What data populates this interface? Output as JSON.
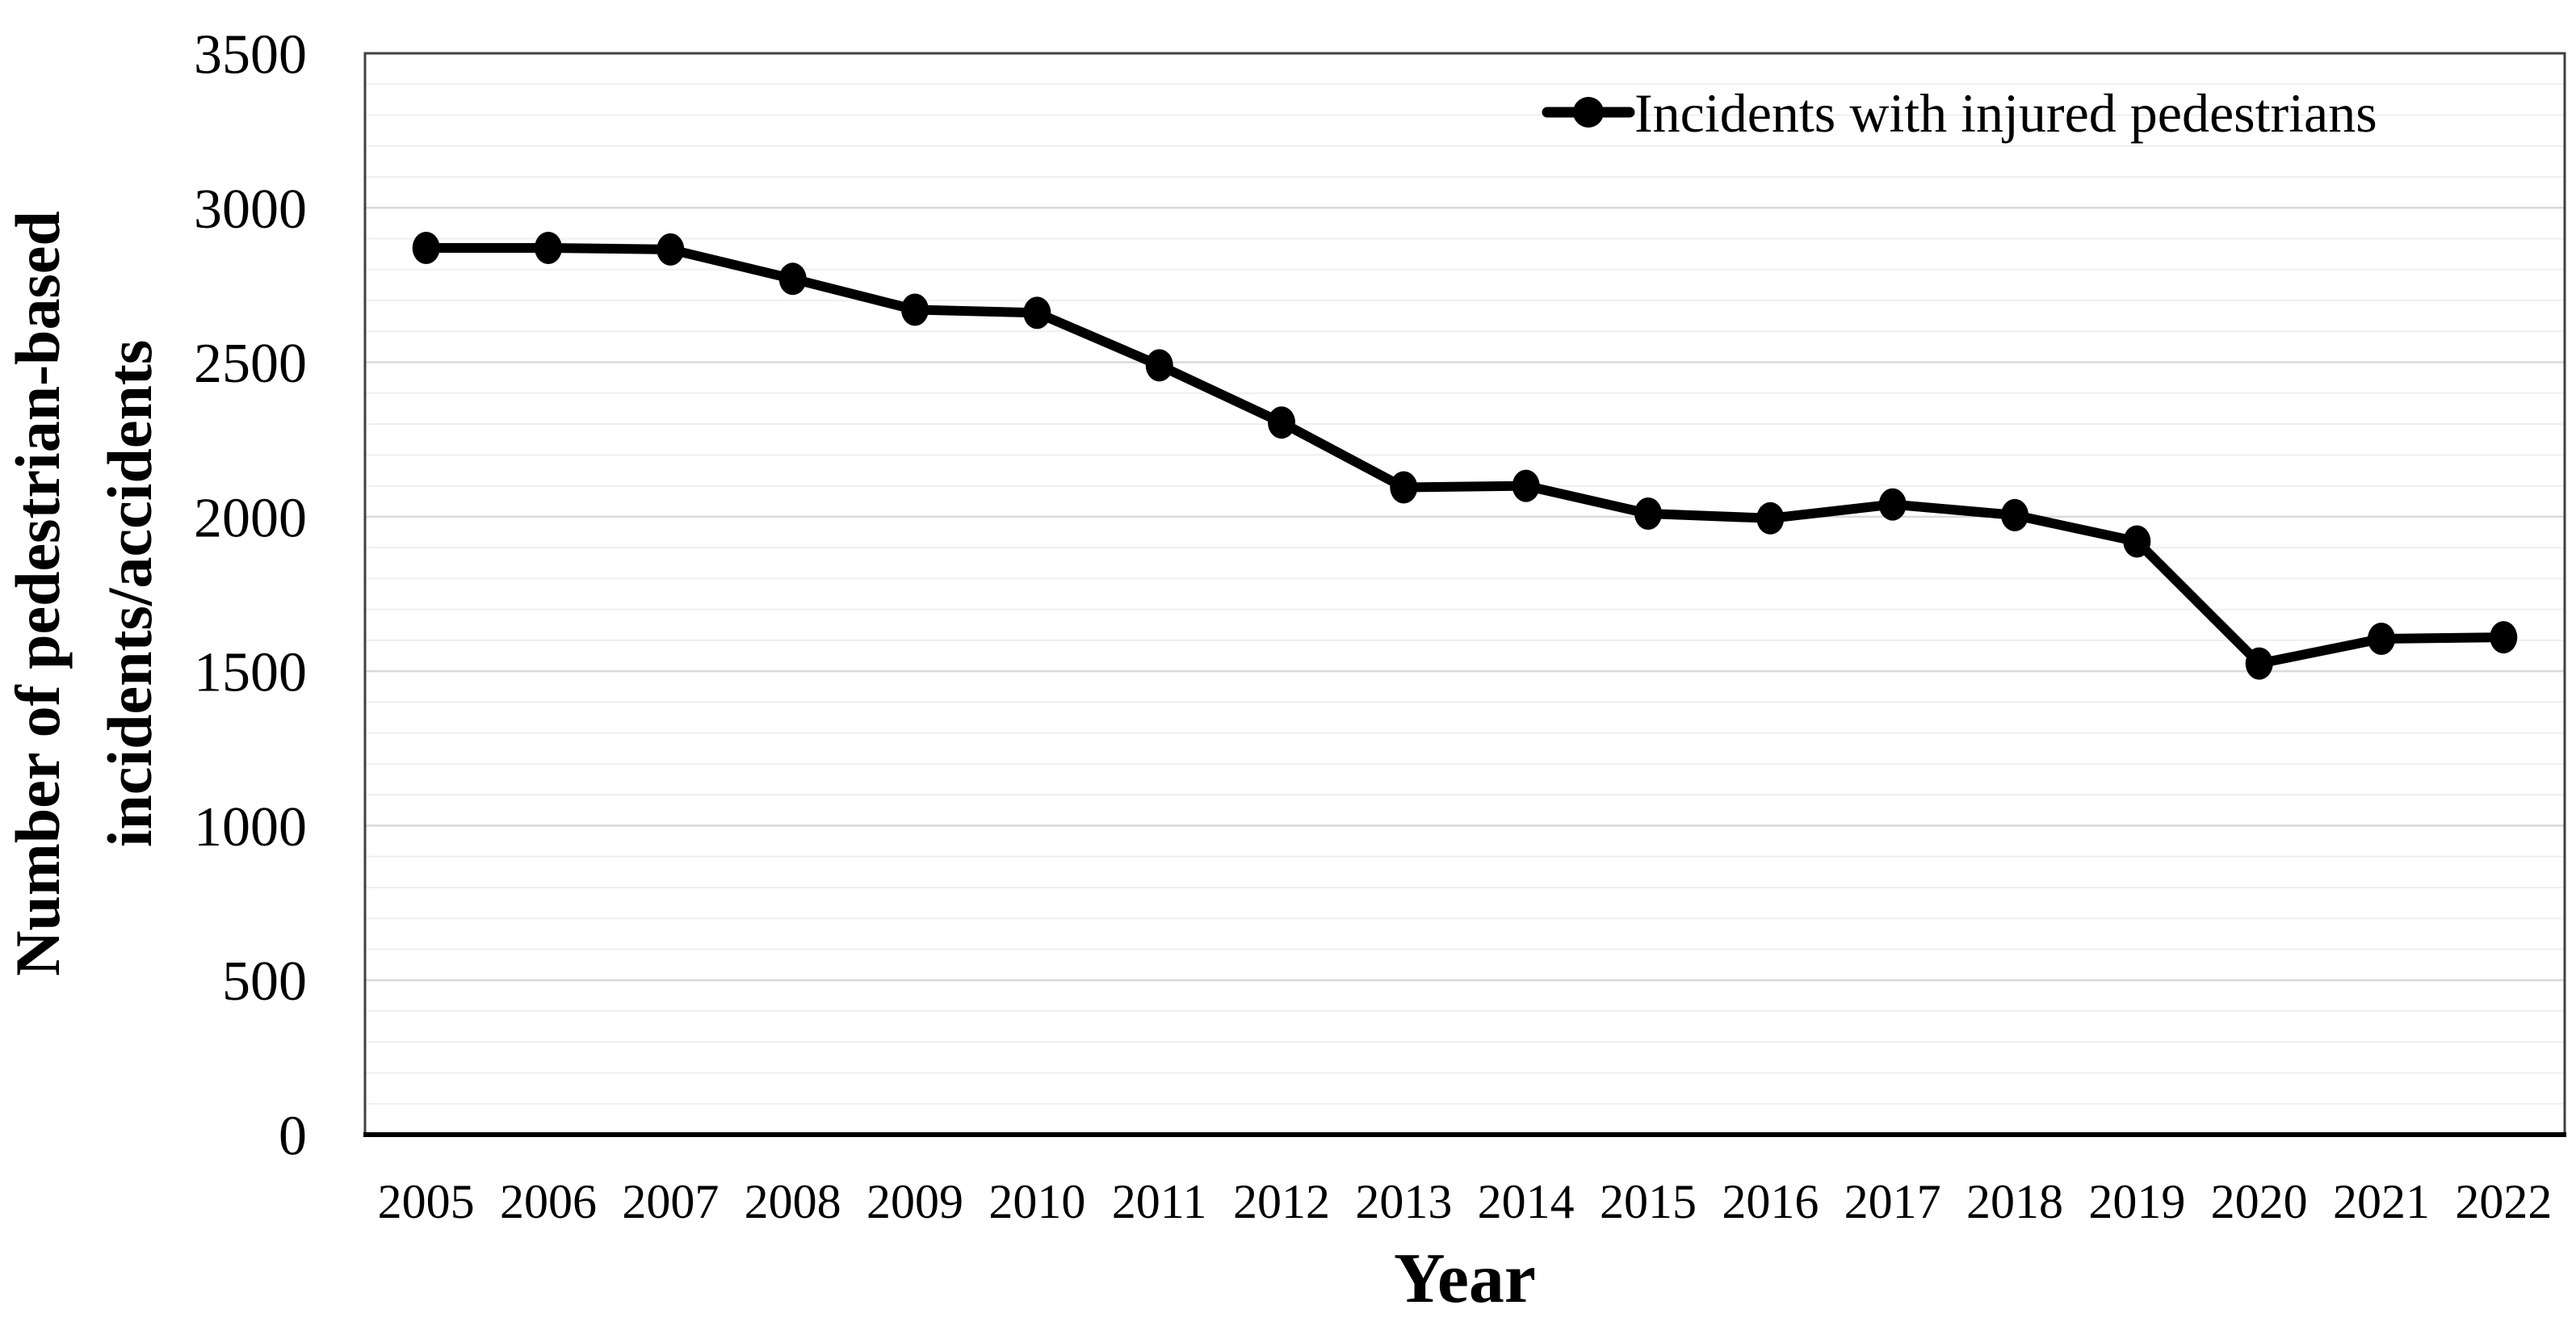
{
  "page": {
    "background": "#ffffff"
  },
  "chart_data": {
    "type": "line",
    "title": "",
    "xlabel": "Year",
    "ylabel": "Number of pedestrian-based incidents/accidents",
    "ylabel_lines": [
      "Number of pedestrian-based",
      "incidents/accidents"
    ],
    "x_categories": [
      "2005",
      "2006",
      "2007",
      "2008",
      "2009",
      "2010",
      "2011",
      "2012",
      "2013",
      "2014",
      "2015",
      "2016",
      "2017",
      "2018",
      "2019",
      "2020",
      "2021",
      "2022"
    ],
    "series": [
      {
        "name": "Incidents with injured pedestrians",
        "color": "#000000",
        "marker": "filled-circle",
        "values": [
          2870,
          2870,
          2865,
          2770,
          2670,
          2660,
          2490,
          2305,
          2095,
          2100,
          2010,
          1995,
          2040,
          2005,
          1920,
          1525,
          1605,
          1610
        ]
      }
    ],
    "ylim": [
      0,
      3500
    ],
    "ytick_step": 500,
    "ygrid_minor_step": 100,
    "yticks": [
      "0",
      "500",
      "1000",
      "1500",
      "2000",
      "2500",
      "3000",
      "3500"
    ],
    "legend": {
      "position": "top-right-inside",
      "entries": [
        "Incidents with injured pedestrians"
      ]
    },
    "grid": {
      "horizontal": true,
      "vertical": false
    },
    "colors": {
      "line": "#000000",
      "grid_minor": "#efefef",
      "grid_major": "#d9d9d9",
      "plot_border": "#404040",
      "axis_line": "#000000",
      "text": "#000000",
      "background": "#ffffff"
    }
  }
}
